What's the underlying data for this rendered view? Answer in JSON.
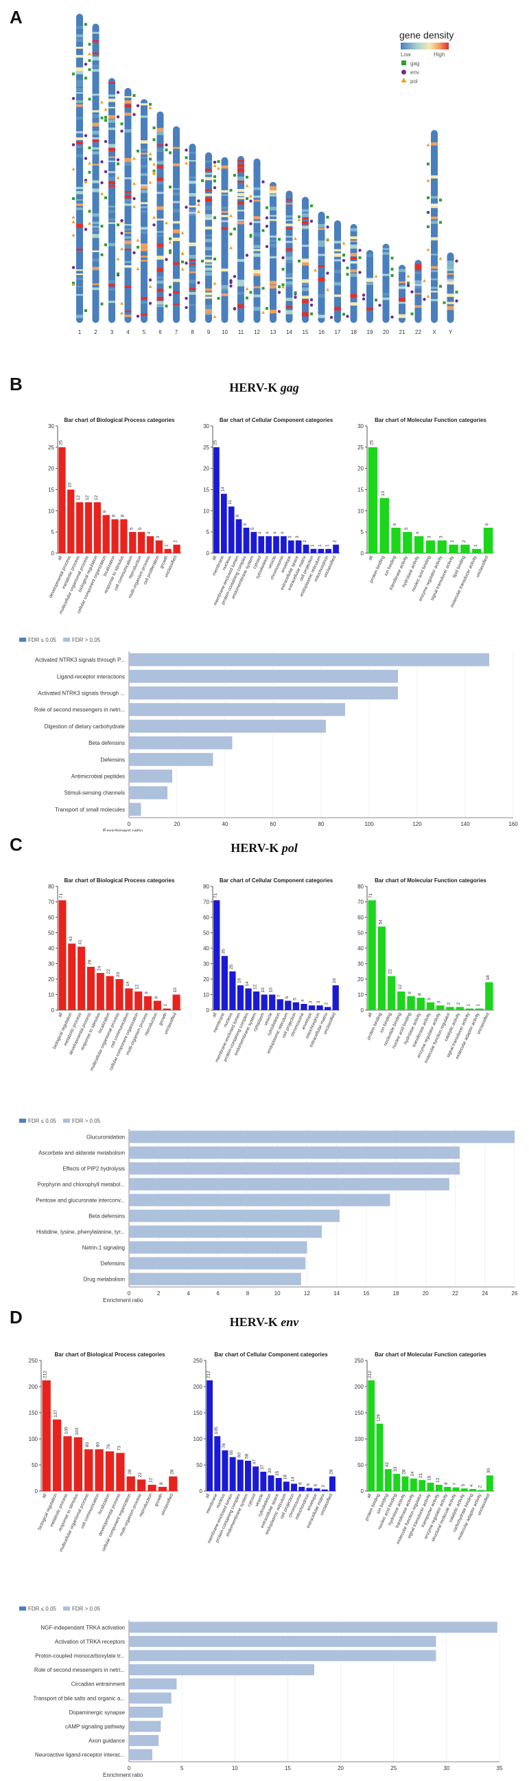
{
  "colors": {
    "bp": "#e8231d",
    "cc": "#1a1ad6",
    "mf": "#1cd61c",
    "enrichment": "#adc0dc",
    "fdr_sig": "#4f7fc0",
    "fdr_ns": "#adc0dc",
    "chrom_base": "#4a7fbd",
    "gag": "#2e9e2e",
    "env": "#6a2c8c",
    "pol": "#f0a020"
  },
  "panel_a": {
    "letter": "A",
    "legend": {
      "title": "gene density",
      "low": "Low",
      "high": "High",
      "items": [
        {
          "label": "gag",
          "icon": "square-icon"
        },
        {
          "label": "env",
          "icon": "circle-icon"
        },
        {
          "label": "pol",
          "icon": "triangle-icon"
        }
      ]
    },
    "chromosomes": [
      "1",
      "2",
      "3",
      "4",
      "5",
      "6",
      "7",
      "8",
      "9",
      "10",
      "11",
      "12",
      "13",
      "14",
      "15",
      "16",
      "17",
      "18",
      "19",
      "20",
      "21",
      "22",
      "X",
      "Y"
    ]
  },
  "legend_fdr": {
    "sig": "FDR ≤ 0.05",
    "ns": "FDR > 0.05"
  },
  "chart_data": [
    {
      "type": "bar",
      "panel": "B",
      "gene": "gag",
      "heading_prefix": "HERV-K",
      "title": "Bar chart of Biological Process categories",
      "ylim": [
        0,
        30
      ],
      "yticks": [
        0,
        5,
        10,
        15,
        20,
        25,
        30
      ],
      "categories": [
        "all",
        "developmental process",
        "metabolic process",
        "multicellular organismal process",
        "biological regulation",
        "cellular component organization",
        "localization",
        "response to stimulus",
        "cell communication",
        "reproduction",
        "multi-organism process",
        "cell proliferation",
        "growth",
        "unclassified"
      ],
      "values": [
        25,
        15,
        12,
        12,
        12,
        9,
        8,
        8,
        5,
        5,
        4,
        3,
        1,
        2
      ]
    },
    {
      "type": "bar",
      "panel": "B",
      "gene": "gag",
      "title": "Bar chart of Cellular Component categories",
      "ylim": [
        0,
        30
      ],
      "yticks": [
        0,
        5,
        10,
        15,
        20,
        25,
        30
      ],
      "categories": [
        "all",
        "membrane",
        "nucleus",
        "membrane-enclosed lumen",
        "protein-containing complex",
        "endomembrane system",
        "cytosol",
        "cytoskeleton",
        "vesicle",
        "chromosome",
        "envelope",
        "extracellular space",
        "extracellular matrix",
        "cell projection",
        "endoplasmic reticulum",
        "mitochondrion",
        "unclassified"
      ],
      "values": [
        25,
        14,
        11,
        8,
        6,
        5,
        4,
        4,
        4,
        4,
        3,
        3,
        2,
        1,
        1,
        1,
        2
      ]
    },
    {
      "type": "bar",
      "panel": "B",
      "gene": "gag",
      "title": "Bar chart of Molecular Function categories",
      "ylim": [
        0,
        30
      ],
      "yticks": [
        0,
        5,
        10,
        15,
        20,
        25,
        30
      ],
      "categories": [
        "all",
        "protein binding",
        "ion binding",
        "transferase activity",
        "hydrolase activity",
        "nucleic acid binding",
        "enzyme regulator activity",
        "signal transducer activity",
        "lipid binding",
        "molecular transducer activity",
        "unclassified"
      ],
      "values": [
        25,
        13,
        6,
        5,
        4,
        3,
        3,
        2,
        2,
        1,
        6
      ]
    },
    {
      "type": "bar",
      "orientation": "horizontal",
      "panel": "B",
      "gene": "gag",
      "xlabel": "Enrichment ratio",
      "xlim": [
        0,
        160
      ],
      "xticks": [
        0,
        20,
        40,
        60,
        80,
        100,
        120,
        140,
        160
      ],
      "categories": [
        "Activated NTRK3 signals through P...",
        "Ligand-receptor interactions",
        "Activated NTRK3 signals through ...",
        "Role of second messengers in netri...",
        "Digestion of dietary carbohydrate",
        "Beta defensins",
        "Defensins",
        "Antimicrobial peptides",
        "Stimuli-sensing channels",
        "Transport of small molecules"
      ],
      "values": [
        150,
        112,
        112,
        90,
        82,
        43,
        35,
        18,
        16,
        5
      ]
    },
    {
      "type": "bar",
      "panel": "C",
      "gene": "pol",
      "heading_prefix": "HERV-K",
      "title": "Bar chart of Biological Process categories",
      "ylim": [
        0,
        80
      ],
      "yticks": [
        0,
        10,
        20,
        30,
        40,
        50,
        60,
        70,
        80
      ],
      "categories": [
        "all",
        "biological regulation",
        "metabolic process",
        "developmental process",
        "response to stimulus",
        "localization",
        "multicellular organismal process",
        "cell communication",
        "cellular component organization",
        "multi-organism process",
        "reproduction",
        "growth",
        "unclassified"
      ],
      "values": [
        71,
        43,
        41,
        28,
        24,
        22,
        20,
        14,
        12,
        9,
        6,
        1,
        10
      ]
    },
    {
      "type": "bar",
      "panel": "C",
      "gene": "pol",
      "title": "Bar chart of Cellular Component categories",
      "ylim": [
        0,
        80
      ],
      "yticks": [
        0,
        10,
        20,
        30,
        40,
        50,
        60,
        70,
        80
      ],
      "categories": [
        "all",
        "membrane",
        "nucleus",
        "membrane-enclosed lumen",
        "protein-containing complex",
        "endomembrane system",
        "cytoplasm",
        "vesicle",
        "cytoskeleton",
        "endoplasmic reticulum",
        "cell projection",
        "chromosome",
        "envelope",
        "mitochondrion",
        "extracellular matrix",
        "unclassified"
      ],
      "values": [
        71,
        35,
        25,
        16,
        14,
        12,
        10,
        10,
        7,
        6,
        5,
        4,
        3,
        3,
        2,
        16
      ]
    },
    {
      "type": "bar",
      "panel": "C",
      "gene": "pol",
      "title": "Bar chart of Molecular Function categories",
      "ylim": [
        0,
        80
      ],
      "yticks": [
        0,
        10,
        20,
        30,
        40,
        50,
        60,
        70,
        80
      ],
      "categories": [
        "all",
        "protein binding",
        "ion binding",
        "nucleotide binding",
        "nucleic acid binding",
        "hydrolase activity",
        "transferase activity",
        "enzyme regulator activity",
        "molecular function regulator",
        "catalytic activity",
        "signal transducer activity",
        "molecular adaptor activity",
        "unclassified"
      ],
      "values": [
        71,
        54,
        22,
        12,
        9,
        8,
        5,
        3,
        2,
        2,
        1,
        1,
        18
      ]
    },
    {
      "type": "bar",
      "orientation": "horizontal",
      "panel": "C",
      "gene": "pol",
      "xlabel": "Enrichment ratio",
      "xlim": [
        0,
        26
      ],
      "xticks": [
        0,
        2,
        4,
        6,
        8,
        10,
        12,
        14,
        16,
        18,
        20,
        22,
        24,
        26
      ],
      "categories": [
        "Glucuronidation",
        "Ascorbate and aldarate metabolism",
        "Effects of PIP2 hydrolysis",
        "Porphyrin and chlorophyll metabol...",
        "Pentose and glucuronate interconv...",
        "Beta defensins",
        "Histidine, lysine, phenylalanine, tyr...",
        "Netrin-1 signaling",
        "Defensins",
        "Drug metabolism"
      ],
      "values": [
        26,
        22.3,
        22.3,
        21.6,
        17.6,
        14.2,
        13,
        12,
        11.9,
        11.6
      ]
    },
    {
      "type": "bar",
      "panel": "D",
      "gene": "env",
      "heading_prefix": "HERV-K",
      "title": "Bar chart of Biological Process categories",
      "ylim": [
        0,
        250
      ],
      "yticks": [
        0,
        50,
        100,
        150,
        200,
        250
      ],
      "categories": [
        "all",
        "biological regulation",
        "metabolic process",
        "response to stimulus",
        "multicellular organismal process",
        "cell communication",
        "localization",
        "developmental process",
        "cellular component organization",
        "multi-organism process",
        "reproduction",
        "growth",
        "unclassified"
      ],
      "values": [
        212,
        137,
        105,
        103,
        80,
        80,
        76,
        73,
        28,
        22,
        12,
        8,
        28
      ]
    },
    {
      "type": "bar",
      "panel": "D",
      "gene": "env",
      "title": "Bar chart of Cellular Component categories",
      "ylim": [
        0,
        250
      ],
      "yticks": [
        0,
        50,
        100,
        150,
        200,
        250
      ],
      "categories": [
        "all",
        "membrane",
        "nucleus",
        "membrane-enclosed lumen",
        "protein-containing complex",
        "endomembrane system",
        "cytosol",
        "vesicle",
        "cytoskeleton",
        "extracellular space",
        "endoplasmic reticulum",
        "cell projection",
        "chromosome",
        "mitochondrion",
        "envelope",
        "extracellular matrix",
        "unclassified"
      ],
      "values": [
        212,
        105,
        78,
        65,
        60,
        58,
        47,
        37,
        30,
        25,
        18,
        14,
        8,
        6,
        5,
        3,
        28
      ]
    },
    {
      "type": "bar",
      "panel": "D",
      "gene": "env",
      "title": "Bar chart of Molecular Function categories",
      "ylim": [
        0,
        250
      ],
      "yticks": [
        0,
        50,
        100,
        150,
        200,
        250
      ],
      "categories": [
        "all",
        "protein binding",
        "ion binding",
        "nucleic acid binding",
        "hydrolase activity",
        "transferase activity",
        "molecular function regulator",
        "signal transducer activity",
        "transporter activity",
        "enzyme regulator activity",
        "structural molecule activity",
        "catalytic activity",
        "carbohydrate binding",
        "molecular adaptor activity",
        "unclassified"
      ],
      "values": [
        212,
        129,
        42,
        33,
        28,
        24,
        21,
        16,
        12,
        8,
        7,
        5,
        4,
        2,
        30
      ]
    },
    {
      "type": "bar",
      "orientation": "horizontal",
      "panel": "D",
      "gene": "env",
      "xlabel": "Enrichment ratio",
      "xlim": [
        0,
        35
      ],
      "xticks": [
        0,
        5,
        10,
        15,
        20,
        25,
        30,
        35
      ],
      "categories": [
        "NGF-independant TRKA activation",
        "Activation of TRKA receptors",
        "Proton-coupled monocarboxylate tr...",
        "Role of second messengers in netri...",
        "Circadian entrainment",
        "Transport of bile salts and organic a...",
        "Dopaminergic synapse",
        "cAMP signaling pathway",
        "Axon guidance",
        "Neuroactive ligand-receptor interac..."
      ],
      "values": [
        34.8,
        29,
        29,
        17.5,
        4.5,
        4,
        3.2,
        3,
        2.8,
        2.2
      ]
    }
  ]
}
